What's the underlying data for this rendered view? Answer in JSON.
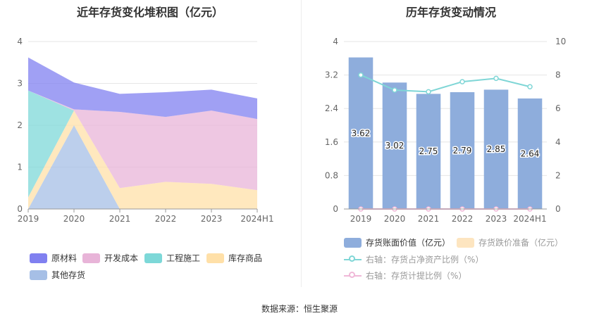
{
  "left_title": "近年存货变化堆积图（亿元）",
  "right_title": "历年存货变动情况",
  "source": "数据来源：恒生聚源",
  "colors": {
    "raw": "#8080f0",
    "dev": "#e8b4d8",
    "eng": "#7dd8d8",
    "goods": "#ffe0a8",
    "other": "#a6bfe6",
    "bar": "#8eaddc",
    "impair": "#fde5c0",
    "ratio_line": "#7fd6d6",
    "prov_line": "#f0b8d8"
  },
  "chart_data": [
    {
      "type": "area",
      "stacked": true,
      "title": "近年存货变化堆积图（亿元）",
      "categories": [
        "2019",
        "2020",
        "2021",
        "2022",
        "2023",
        "2024H1"
      ],
      "ylim": [
        0,
        4
      ],
      "yticks": [
        "0",
        "1",
        "2",
        "3",
        "4"
      ],
      "grid": true,
      "legend_position": "bottom",
      "series": [
        {
          "name": "其他存货",
          "key": "other",
          "values": [
            0,
            2.0,
            0,
            0,
            0,
            0
          ]
        },
        {
          "name": "库存商品",
          "key": "goods",
          "values": [
            0.28,
            0.35,
            0.5,
            0.65,
            0.6,
            0.45
          ]
        },
        {
          "name": "工程施工",
          "key": "eng",
          "values": [
            2.55,
            0,
            0,
            0,
            0,
            0
          ]
        },
        {
          "name": "开发成本",
          "key": "dev",
          "values": [
            0,
            0.03,
            1.82,
            1.55,
            1.75,
            1.7
          ]
        },
        {
          "name": "原材料",
          "key": "raw",
          "values": [
            0.79,
            0.64,
            0.43,
            0.59,
            0.5,
            0.49
          ]
        }
      ],
      "legend": [
        {
          "name": "原材料",
          "key": "raw"
        },
        {
          "name": "开发成本",
          "key": "dev"
        },
        {
          "name": "工程施工",
          "key": "eng"
        },
        {
          "name": "库存商品",
          "key": "goods"
        },
        {
          "name": "其他存货",
          "key": "other"
        }
      ]
    },
    {
      "type": "bar",
      "title": "历年存货变动情况",
      "categories": [
        "2019",
        "2020",
        "2021",
        "2022",
        "2023",
        "2024H1"
      ],
      "ylim_left": [
        0,
        4
      ],
      "yticks_left": [
        "0",
        "0.8",
        "1.6",
        "2.4",
        "3.2",
        "4"
      ],
      "ylim_right": [
        0,
        10
      ],
      "yticks_right": [
        "0",
        "2",
        "4",
        "6",
        "8",
        "10"
      ],
      "grid": true,
      "legend_position": "bottom",
      "series": [
        {
          "name": "存货账面价值（亿元）",
          "type": "bar",
          "axis": "left",
          "values": [
            3.62,
            3.02,
            2.75,
            2.79,
            2.85,
            2.64
          ],
          "labels": [
            "3.62",
            "3.02",
            "2.75",
            "2.79",
            "2.85",
            "2.64"
          ]
        },
        {
          "name": "存货跌价准备（亿元）",
          "type": "bar",
          "axis": "left",
          "values": [
            0,
            0,
            0,
            0,
            0,
            0
          ]
        },
        {
          "name": "右轴：存货占净资产比例（%）",
          "type": "line",
          "axis": "right",
          "values": [
            8.0,
            7.1,
            7.0,
            7.6,
            7.8,
            7.3
          ]
        },
        {
          "name": "右轴：存货计提比例（%）",
          "type": "line",
          "axis": "right",
          "values": [
            0,
            0,
            0,
            0,
            0,
            0
          ]
        }
      ]
    }
  ]
}
